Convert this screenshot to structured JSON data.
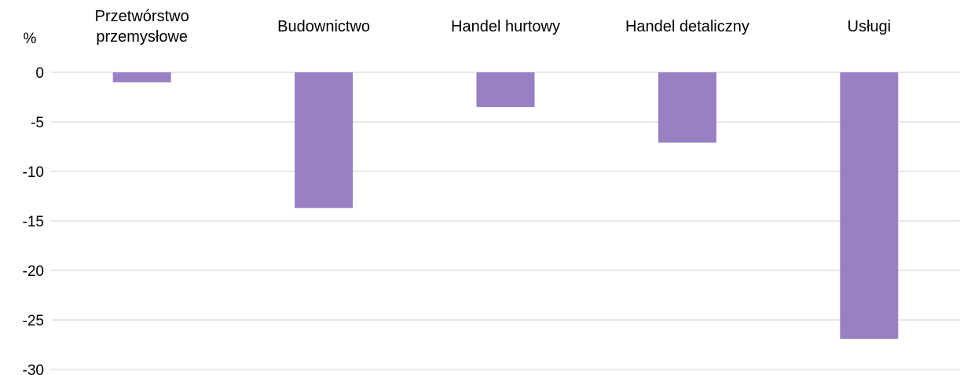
{
  "chart_data": {
    "type": "bar",
    "ylabel": "%",
    "categories": [
      [
        "Przetwórstwo",
        "przemysłowe"
      ],
      [
        "Budownictwo"
      ],
      [
        "Handel hurtowy"
      ],
      [
        "Handel detaliczny"
      ],
      [
        "Usługi"
      ]
    ],
    "values": [
      -1.0,
      -13.7,
      -3.5,
      -7.1,
      -26.9
    ],
    "ylim": [
      -30,
      0
    ],
    "yticks": [
      0,
      -5,
      -10,
      -15,
      -20,
      -25,
      -30
    ],
    "grid": true,
    "legend": "none",
    "category_axis_position": "top",
    "bar_color": "#9980c2"
  }
}
